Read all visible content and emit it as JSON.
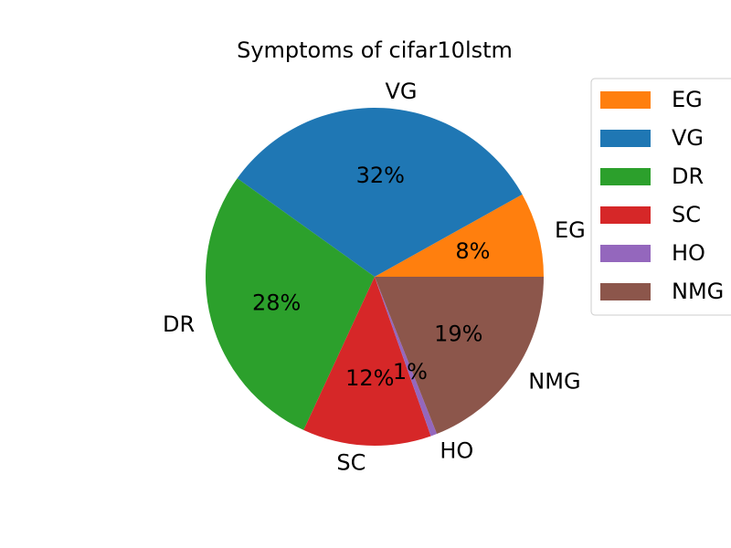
{
  "chart_data": {
    "type": "pie",
    "title": "Symptoms of cifar10lstm",
    "categories": [
      "EG",
      "VG",
      "DR",
      "SC",
      "HO",
      "NMG"
    ],
    "values": [
      8.1,
      32.0,
      28.0,
      12.3,
      0.6,
      19.0
    ],
    "percent_labels": [
      "8%",
      "32%",
      "28%",
      "12%",
      "1%",
      "19%"
    ],
    "colors": [
      "#ff7f0e",
      "#1f77b4",
      "#2ca02c",
      "#d62728",
      "#9467bd",
      "#8c564b"
    ],
    "start_angle_deg": 0,
    "direction": "counterclockwise",
    "legend_position": "right",
    "legend": [
      "EG",
      "VG",
      "DR",
      "SC",
      "HO",
      "NMG"
    ]
  }
}
